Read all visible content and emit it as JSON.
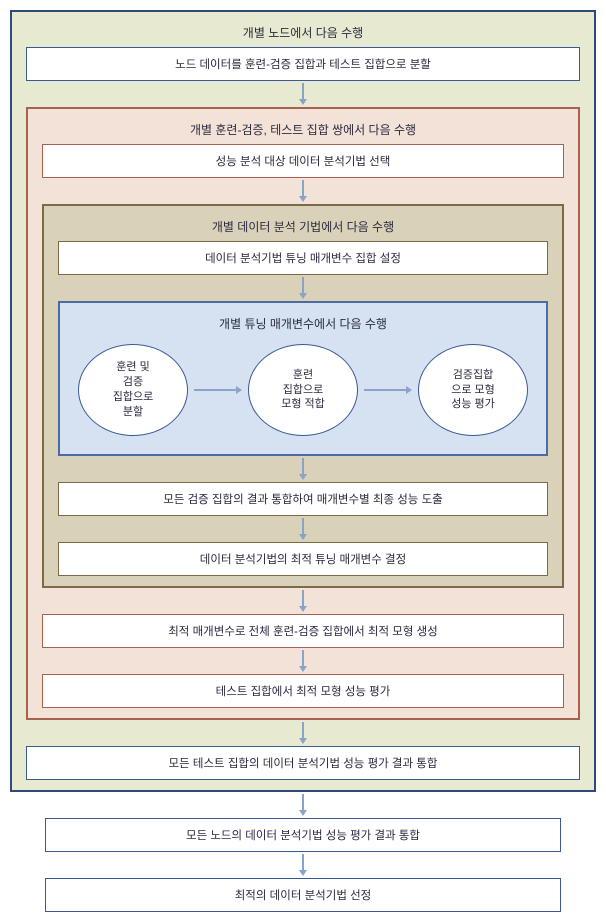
{
  "diagram": {
    "type": "flowchart",
    "background_color": "#ffffff",
    "arrow_color": "#8aa3c8",
    "text_color": "#2a2a40",
    "label_fontsize": 12,
    "box_fontsize": 11.5,
    "ellipse_fontsize": 11,
    "panels": {
      "level1": {
        "title": "개별 노드에서 다음 수행",
        "border_color": "#2f4a7a",
        "bg_color": "#e7ead1"
      },
      "level2": {
        "title": "개별 훈련-검증, 테스트 집합 쌍에서 다음 수행",
        "border_color": "#a8614f",
        "bg_color": "#f3e2d8"
      },
      "level3": {
        "title": "개별 데이터 분석 기법에서 다음 수행",
        "border_color": "#7a6a45",
        "bg_color": "#d9d2b8"
      },
      "level4": {
        "title": "개별 튜닝 매개변수에서 다음 수행",
        "border_color": "#4a6aa8",
        "bg_color": "#d6e2f2"
      }
    },
    "boxes": {
      "b1": {
        "text": "노드 데이터를 훈련-검증 집합과 테스트 집합으로 분할",
        "border_color": "#3a5a96"
      },
      "b2": {
        "text": "성능 분석 대상 데이터 분석기법 선택",
        "border_color": "#a8614f"
      },
      "b3": {
        "text": "데이터 분석기법 튜닝 매개변수 집합 설정",
        "border_color": "#7a6a45"
      },
      "b4": {
        "text": "모든 검증 집합의 결과 통합하여 매개변수별 최종 성능 도출",
        "border_color": "#7a6a45"
      },
      "b5": {
        "text": "데이터 분석기법의 최적 튜닝 매개변수 결정",
        "border_color": "#7a6a45"
      },
      "b6": {
        "text": "최적 매개변수로 전체 훈련-검증 집합에서 최적 모형 생성",
        "border_color": "#a8614f"
      },
      "b7": {
        "text": "테스트 집합에서 최적 모형 성능 평가",
        "border_color": "#a8614f"
      },
      "b8": {
        "text": "모든 테스트 집합의 데이터 분석기법 성능 평가 결과 통합",
        "border_color": "#3a5a96"
      },
      "b9": {
        "text": "모든 노드의 데이터 분석기법 성능 평가 결과 통합",
        "border_color": "#3a5a96"
      },
      "b10": {
        "text": "최적의 데이터 분석기법 선정",
        "border_color": "#3a5a96"
      }
    },
    "ellipses": {
      "e1": {
        "text": "훈련 및\n검증\n집합으로\n분할",
        "border_color": "#3a5a96"
      },
      "e2": {
        "text": "훈련\n집합으로\n모형 적합",
        "border_color": "#3a5a96"
      },
      "e3": {
        "text": "검증집합\n으로 모형\n성능 평가",
        "border_color": "#3a5a96"
      }
    },
    "arrows": {
      "vertical_length": 18,
      "horizontal_length": 44
    }
  }
}
